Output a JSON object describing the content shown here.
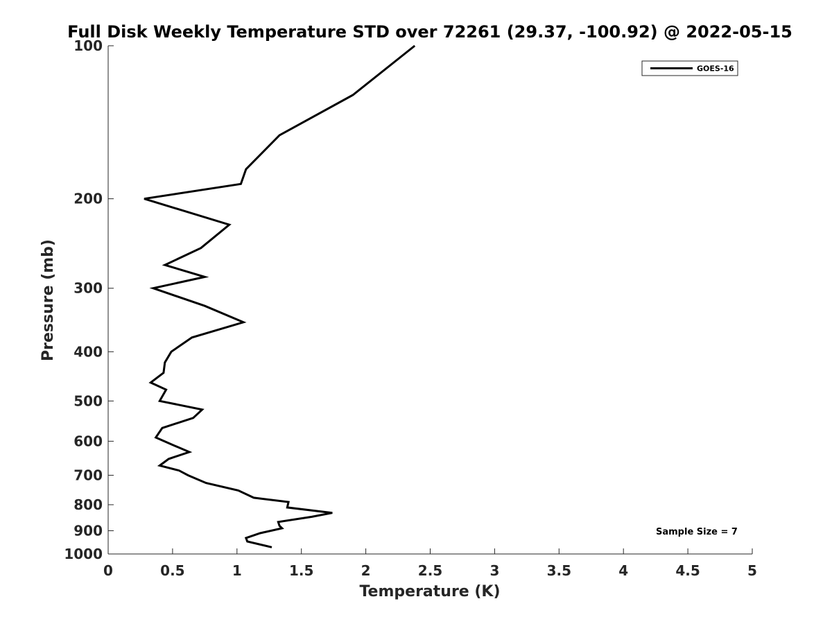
{
  "chart_data": {
    "type": "line",
    "title": "Full Disk Weekly Temperature STD over 72261 (29.37, -100.92) @ 2022-05-15",
    "xlabel": "Temperature (K)",
    "ylabel": "Pressure (mb)",
    "xlim": [
      0,
      5
    ],
    "ylim": [
      100,
      1000
    ],
    "y_scale": "log",
    "y_reversed": true,
    "grid": false,
    "legend_position": "top-right",
    "x_ticks": [
      0,
      0.5,
      1,
      1.5,
      2,
      2.5,
      3,
      3.5,
      4,
      4.5,
      5
    ],
    "x_tick_labels": [
      "0",
      "0.5",
      "1",
      "1.5",
      "2",
      "2.5",
      "3",
      "3.5",
      "4",
      "4.5",
      "5"
    ],
    "y_ticks": [
      100,
      200,
      300,
      400,
      500,
      600,
      700,
      800,
      900,
      1000
    ],
    "y_tick_labels": [
      "100",
      "200",
      "300",
      "400",
      "500",
      "600",
      "700",
      "800",
      "900",
      "1000"
    ],
    "series": [
      {
        "name": "GOES-16",
        "color": "#000000",
        "points": [
          [
            2.38,
            100
          ],
          [
            1.9,
            125
          ],
          [
            1.33,
            150
          ],
          [
            1.07,
            175
          ],
          [
            1.03,
            187
          ],
          [
            0.28,
            200
          ],
          [
            0.94,
            225
          ],
          [
            0.72,
            250
          ],
          [
            0.44,
            270
          ],
          [
            0.75,
            285
          ],
          [
            0.35,
            300
          ],
          [
            0.75,
            325
          ],
          [
            1.05,
            350
          ],
          [
            0.65,
            375
          ],
          [
            0.49,
            400
          ],
          [
            0.44,
            420
          ],
          [
            0.43,
            440
          ],
          [
            0.33,
            460
          ],
          [
            0.45,
            475
          ],
          [
            0.4,
            500
          ],
          [
            0.73,
            520
          ],
          [
            0.66,
            540
          ],
          [
            0.42,
            565
          ],
          [
            0.37,
            590
          ],
          [
            0.5,
            610
          ],
          [
            0.63,
            630
          ],
          [
            0.47,
            650
          ],
          [
            0.4,
            670
          ],
          [
            0.55,
            685
          ],
          [
            0.62,
            700
          ],
          [
            0.76,
            725
          ],
          [
            1.01,
            750
          ],
          [
            1.13,
            775
          ],
          [
            1.4,
            790
          ],
          [
            1.39,
            810
          ],
          [
            1.74,
            830
          ],
          [
            1.58,
            845
          ],
          [
            1.32,
            865
          ],
          [
            1.33,
            880
          ],
          [
            1.35,
            890
          ],
          [
            1.18,
            910
          ],
          [
            1.07,
            930
          ],
          [
            1.08,
            945
          ],
          [
            1.27,
            970
          ]
        ]
      }
    ],
    "annotations": [
      "Sample Size = 7"
    ]
  }
}
